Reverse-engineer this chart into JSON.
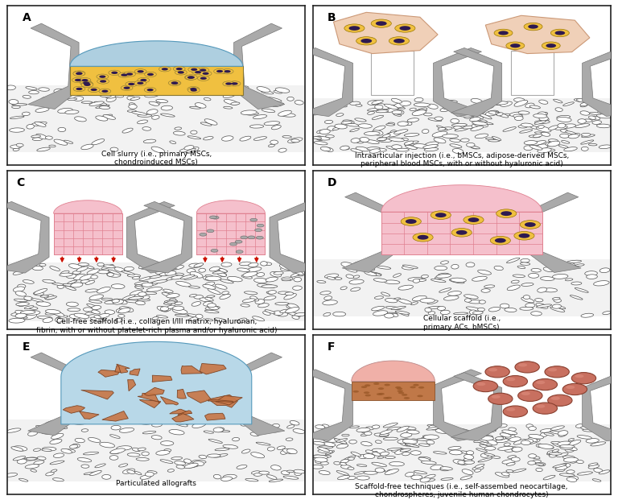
{
  "bg": "#ffffff",
  "border": "#222222",
  "gray_wall": "#aaaaaa",
  "gray_wall_dark": "#777777",
  "bone_bg": "#f0f0f0",
  "cartilage_blue": "#aecfe0",
  "yellow_cell": "#f0c040",
  "purple_nuc": "#2e1a50",
  "pink_light": "#f5c0cc",
  "scaffold_line": "#e08090",
  "red_peg": "#cc1100",
  "salmon": "#f0d0b8",
  "orange_graft": "#c87848",
  "light_blue_bowl": "#b8d8e8",
  "salmon_cap": "#f0b0a8",
  "terracotta": "#c87060",
  "caption_A_bold": "Cell slurry",
  "caption_A_rest": " (i.e., primary MSCs,\nchondroinduced MSCs)",
  "caption_B_bold": "Intraarticular injection",
  "caption_B_rest": " (i.e., bMSCs, adipose-derived MSCs,\nperipheral blood MSCs, with or without hyaluronic acid)",
  "caption_C_bold": "Cell-free scaffold",
  "caption_C_rest": " (i.e., collagen I/III matrix, hyaluronan,\nfibrin, with or without platelet-rich plasma and/or hyaluronic acid)",
  "caption_D_bold": "Cellular scaffold",
  "caption_D_rest": " (i.e.,\nprimary ACs, bMSCs)",
  "caption_E_bold": "Particulated allografts",
  "caption_E_rest": "",
  "caption_F_bold": "Scaffold-free techniques",
  "caption_F_rest": " (i.e., self-assembed neocartilage,\nchondrospheres, juvenile human chondrocytes)"
}
